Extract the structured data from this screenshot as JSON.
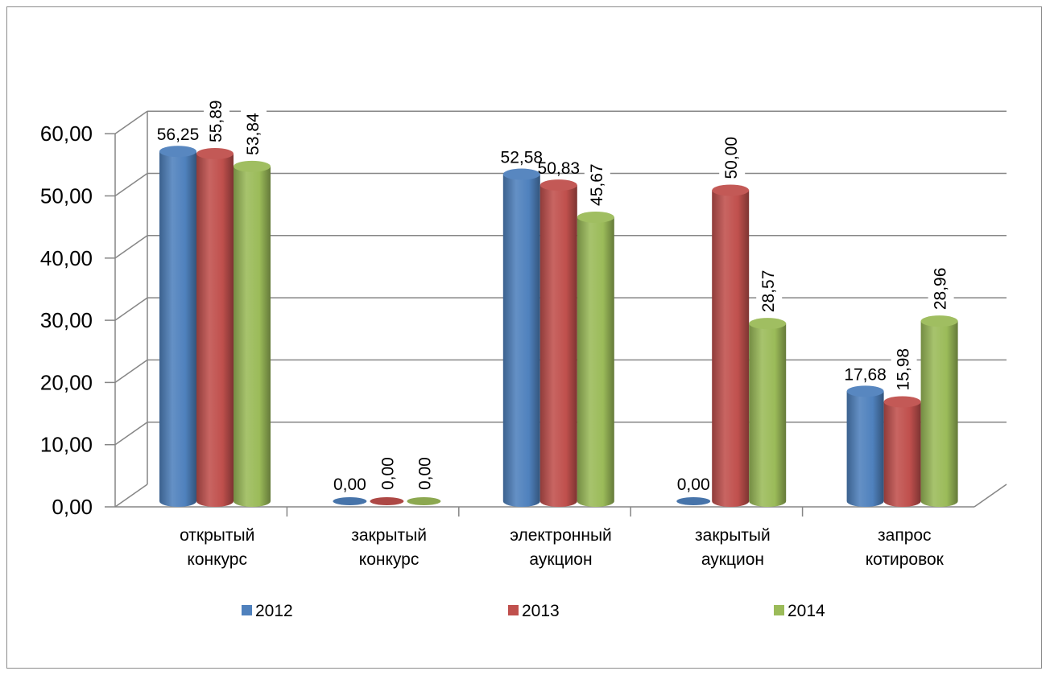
{
  "chart_data": {
    "type": "bar",
    "style": "3d-cylinder",
    "categories": [
      [
        "открытый",
        "конкурс"
      ],
      [
        "закрытый",
        "конкурс"
      ],
      [
        "электронный",
        "аукцион"
      ],
      [
        "закрытый",
        "аукцион"
      ],
      [
        "запрос",
        "котировок"
      ]
    ],
    "series": [
      {
        "name": "2012",
        "color": "#4f81bd",
        "values": [
          56.25,
          0.0,
          52.58,
          0.0,
          17.68
        ]
      },
      {
        "name": "2013",
        "color": "#c0504d",
        "values": [
          55.89,
          0.0,
          50.83,
          50.0,
          15.98
        ]
      },
      {
        "name": "2014",
        "color": "#9bbb59",
        "values": [
          53.84,
          0.0,
          45.67,
          28.57,
          28.96
        ]
      }
    ],
    "data_labels": [
      [
        "56,25",
        "0,00",
        "52,58",
        "0,00",
        "17,68"
      ],
      [
        "55,89",
        "0,00",
        "50,83",
        "50,00",
        "15,98"
      ],
      [
        "53,84",
        "0,00",
        "45,67",
        "28,57",
        "28,96"
      ]
    ],
    "y_ticks": [
      "0,00",
      "10,00",
      "20,00",
      "30,00",
      "40,00",
      "50,00",
      "60,00"
    ],
    "ylim": [
      0,
      60
    ],
    "grid": true,
    "legend_position": "bottom"
  }
}
